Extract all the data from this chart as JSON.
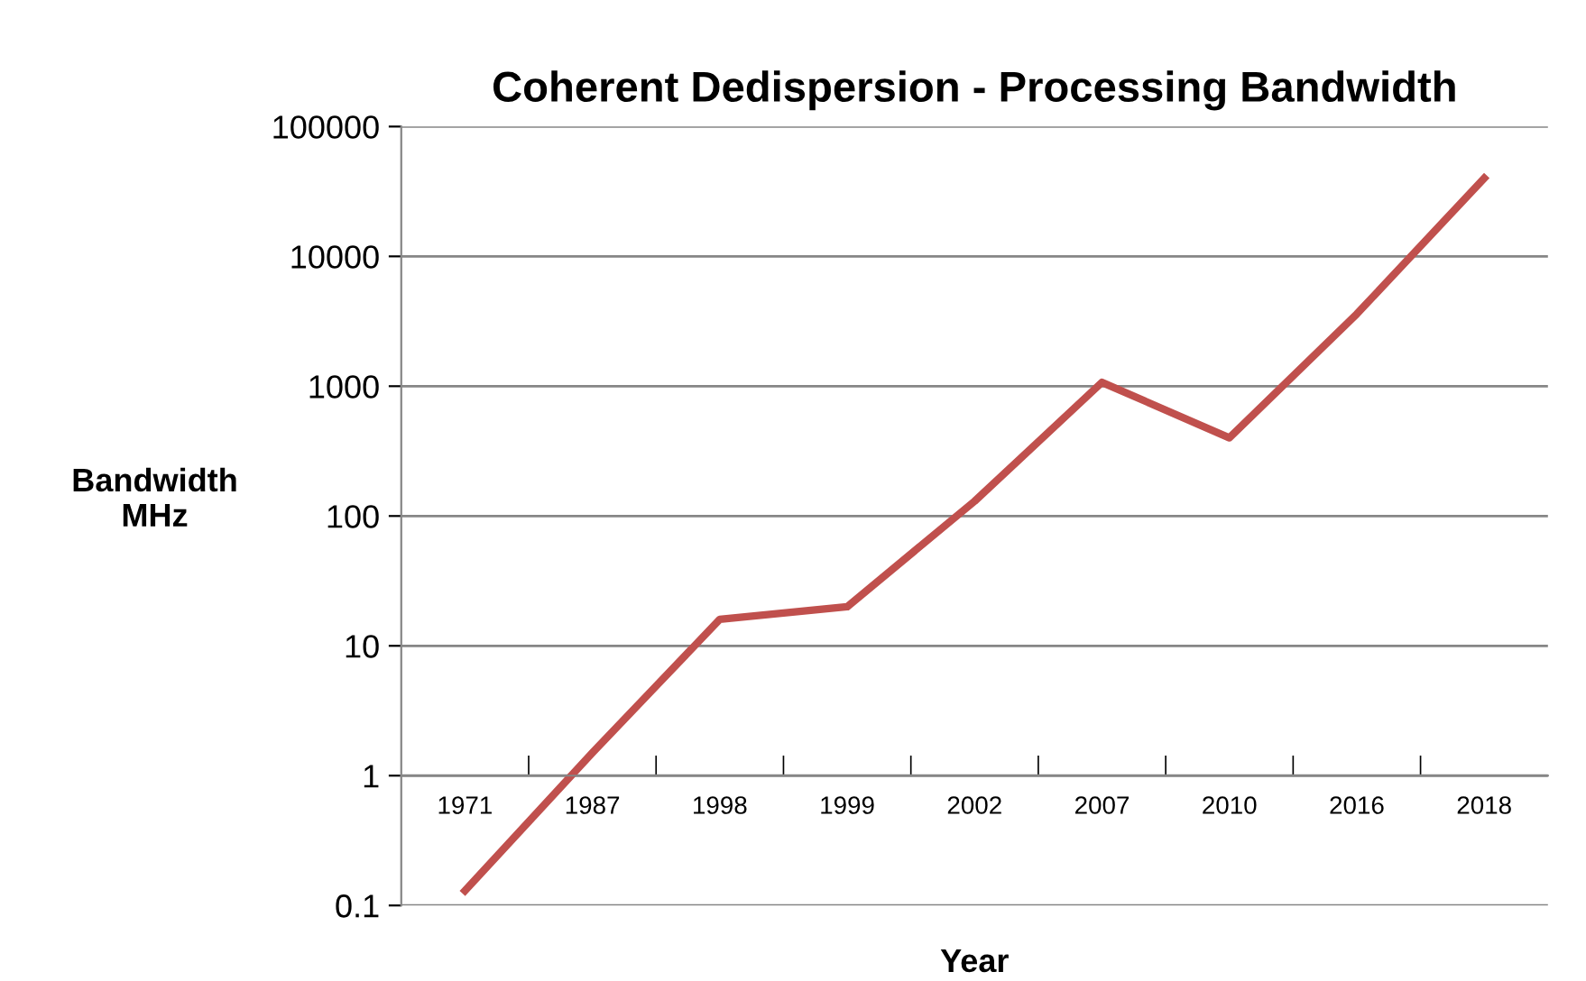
{
  "chart_data": {
    "type": "line",
    "title": "Coherent Dedispersion - Processing Bandwidth",
    "xlabel": "Year",
    "ylabel": "Bandwidth\nMHz",
    "categories": [
      "1971",
      "1987",
      "1998",
      "1999",
      "2002",
      "2007",
      "2010",
      "2016",
      "2018"
    ],
    "series": [
      {
        "color": "#c0504d",
        "values": [
          0.13,
          1.5,
          16,
          20,
          130,
          1070,
          400,
          3600,
          40000
        ]
      }
    ],
    "log": "y",
    "ylim": [
      0.1,
      100000
    ],
    "yticks": [
      0.1,
      1,
      10,
      100,
      1000,
      10000,
      100000
    ],
    "grid": "y",
    "legend": false,
    "marker": "none",
    "line_style": "solid"
  }
}
